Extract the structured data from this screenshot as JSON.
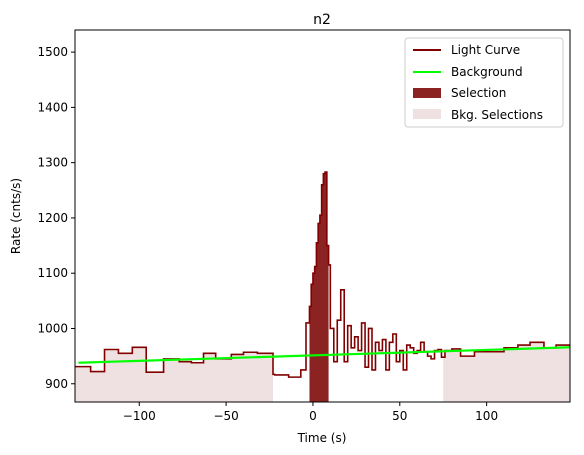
{
  "chart_data": {
    "type": "line",
    "title": "n2",
    "xlabel": "Time (s)",
    "ylabel": "Rate (cnts/s)",
    "xlim": [
      -137,
      148
    ],
    "ylim": [
      867,
      1540
    ],
    "xticks": [
      -100,
      -50,
      0,
      50,
      100
    ],
    "yticks": [
      900,
      1000,
      1100,
      1200,
      1300,
      1400,
      1500
    ],
    "grid": false,
    "legend_position": "top-right",
    "colors": {
      "light_curve": "#800000",
      "background": "#00ff00",
      "selection": "#8b2323",
      "bkg_selection": "#efe1e1"
    },
    "legend": [
      {
        "label": "Light Curve",
        "kind": "line",
        "color": "#800000"
      },
      {
        "label": "Background",
        "kind": "line",
        "color": "#00ff00"
      },
      {
        "label": "Selection",
        "kind": "patch",
        "color": "#8b2323"
      },
      {
        "label": "Bkg. Selections",
        "kind": "patch",
        "color": "#efe1e1"
      }
    ],
    "background_fit": {
      "x": [
        -135,
        148
      ],
      "y": [
        938,
        966
      ]
    },
    "selection_interval": [
      -2,
      9
    ],
    "bkg_selection_intervals": [
      [
        -137,
        -23
      ],
      [
        75,
        148
      ]
    ],
    "light_curve": {
      "bin_edges": [
        -137,
        -128,
        -120,
        -112,
        -104,
        -96,
        -86,
        -77,
        -70,
        -63,
        -56,
        -47,
        -40,
        -32,
        -23,
        -22,
        -14,
        -7,
        -4,
        -2,
        -1,
        0,
        1,
        2,
        3,
        4,
        5,
        6,
        7,
        8,
        9,
        10,
        12,
        14,
        16,
        18,
        20,
        22,
        24,
        26,
        28,
        30,
        32,
        34,
        36,
        38,
        40,
        42,
        44,
        46,
        48,
        50,
        52,
        54,
        56,
        58,
        60,
        62,
        64,
        66,
        68,
        70,
        72,
        74,
        76,
        80,
        85,
        93,
        101,
        110,
        118,
        125,
        133,
        140,
        148
      ],
      "rates": [
        931,
        922,
        962,
        955,
        966,
        921,
        945,
        940,
        938,
        955,
        945,
        953,
        957,
        955,
        917,
        916,
        912,
        925,
        1010,
        1040,
        1080,
        1100,
        1112,
        1155,
        1190,
        1205,
        1260,
        1280,
        1283,
        1150,
        1115,
        1000,
        940,
        1015,
        1070,
        940,
        1005,
        965,
        985,
        960,
        1010,
        930,
        1000,
        925,
        975,
        960,
        980,
        925,
        975,
        990,
        940,
        960,
        925,
        970,
        965,
        955,
        960,
        975,
        958,
        950,
        945,
        960,
        962,
        948,
        960,
        963,
        950,
        958,
        958,
        965,
        970,
        975,
        965,
        970
      ]
    }
  }
}
